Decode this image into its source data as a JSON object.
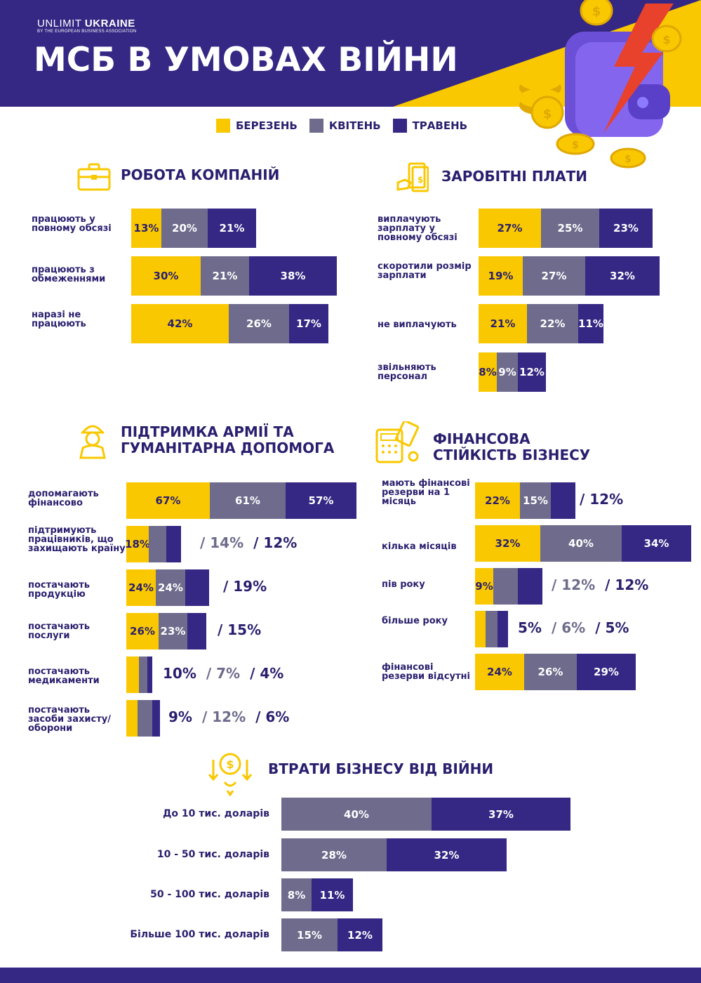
{
  "header": {
    "brand_main": "UNLIMIT",
    "brand_bold": "UKRAINE",
    "brand_sub": "BY THE EUROPEAN BUSINESS ASSOCIATION",
    "title": "МСБ В УМОВАХ ВІЙНИ"
  },
  "colors": {
    "yellow": "#f9c800",
    "gray": "#6e6b8c",
    "purple": "#352784"
  },
  "legend": [
    {
      "label": "БЕРЕЗЕНЬ",
      "color": "#f9c800"
    },
    {
      "label": "КВІТЕНЬ",
      "color": "#6e6b8c"
    },
    {
      "label": "ТРАВЕНЬ",
      "color": "#352784"
    }
  ],
  "chart_data": [
    {
      "type": "bar",
      "title": "РОБОТА КОМПАНІЙ",
      "icon": "briefcase-icon",
      "series_names": [
        "БЕРЕЗЕНЬ",
        "КВІТЕНЬ",
        "ТРАВЕНЬ"
      ],
      "rows": [
        {
          "label": "працюють у повному обсязі",
          "values": [
            13,
            20,
            21
          ]
        },
        {
          "label": "працюють з обмеженнями",
          "values": [
            30,
            21,
            38
          ]
        },
        {
          "label": "наразі не працюють",
          "values": [
            42,
            26,
            17
          ]
        }
      ]
    },
    {
      "type": "bar",
      "title": "ЗАРОБІТНІ ПЛАТИ",
      "icon": "salary-icon",
      "series_names": [
        "БЕРЕЗЕНЬ",
        "КВІТЕНЬ",
        "ТРАВЕНЬ"
      ],
      "rows": [
        {
          "label": "виплачують зарплату у повному обсязі",
          "values": [
            27,
            25,
            23
          ]
        },
        {
          "label": "скоротили розмір зарплати",
          "values": [
            19,
            27,
            32
          ]
        },
        {
          "label": "не виплачують",
          "values": [
            21,
            22,
            11
          ]
        },
        {
          "label": "звільняють персонал",
          "values": [
            8,
            9,
            12
          ]
        }
      ]
    },
    {
      "type": "bar",
      "title": "ПІДТРИМКА АРМІЇ ТА ГУМАНІТАРНА ДОПОМОГА",
      "icon": "soldier-icon",
      "series_names": [
        "БЕРЕЗЕНЬ",
        "КВІТЕНЬ",
        "ТРАВЕНЬ"
      ],
      "rows": [
        {
          "label": "допомагають фінансово",
          "values": [
            67,
            61,
            57
          ]
        },
        {
          "label": "підтримують працівників, що захищають країну",
          "values": [
            18,
            14,
            12
          ]
        },
        {
          "label": "постачають продукцію",
          "values": [
            24,
            24,
            19
          ]
        },
        {
          "label": "постачають послуги",
          "values": [
            26,
            23,
            15
          ]
        },
        {
          "label": "постачають медикаменти",
          "values": [
            10,
            7,
            4
          ]
        },
        {
          "label": "постачають засоби захисту/оборони",
          "values": [
            9,
            12,
            6
          ]
        }
      ]
    },
    {
      "type": "bar",
      "title": "ФІНАНСОВА СТІЙКІСТЬ БІЗНЕСУ",
      "icon": "calculator-icon",
      "series_names": [
        "БЕРЕЗЕНЬ",
        "КВІТЕНЬ",
        "ТРАВЕНЬ"
      ],
      "rows": [
        {
          "label": "мають фінансові резерви на 1 місяць",
          "values": [
            22,
            15,
            12
          ]
        },
        {
          "label": "кілька місяців",
          "values": [
            32,
            40,
            34
          ]
        },
        {
          "label": "пів року",
          "values": [
            9,
            12,
            12
          ]
        },
        {
          "label": "більше року",
          "values": [
            5,
            6,
            5
          ]
        },
        {
          "label": "фінансові резерви відсутні",
          "values": [
            24,
            26,
            29
          ]
        }
      ]
    },
    {
      "type": "bar",
      "title": "ВТРАТИ БІЗНЕСУ ВІД ВІЙНИ",
      "icon": "money-loss-icon",
      "series_names": [
        "КВІТЕНЬ",
        "ТРАВЕНЬ"
      ],
      "rows": [
        {
          "label": "До 10 тис. доларів",
          "values": [
            40,
            37
          ]
        },
        {
          "label": "10 - 50 тис. доларів",
          "values": [
            28,
            32
          ]
        },
        {
          "label": "50 - 100 тис. доларів",
          "values": [
            8,
            11
          ]
        },
        {
          "label": "Більше 100 тис. доларів",
          "values": [
            15,
            12
          ]
        }
      ]
    }
  ]
}
